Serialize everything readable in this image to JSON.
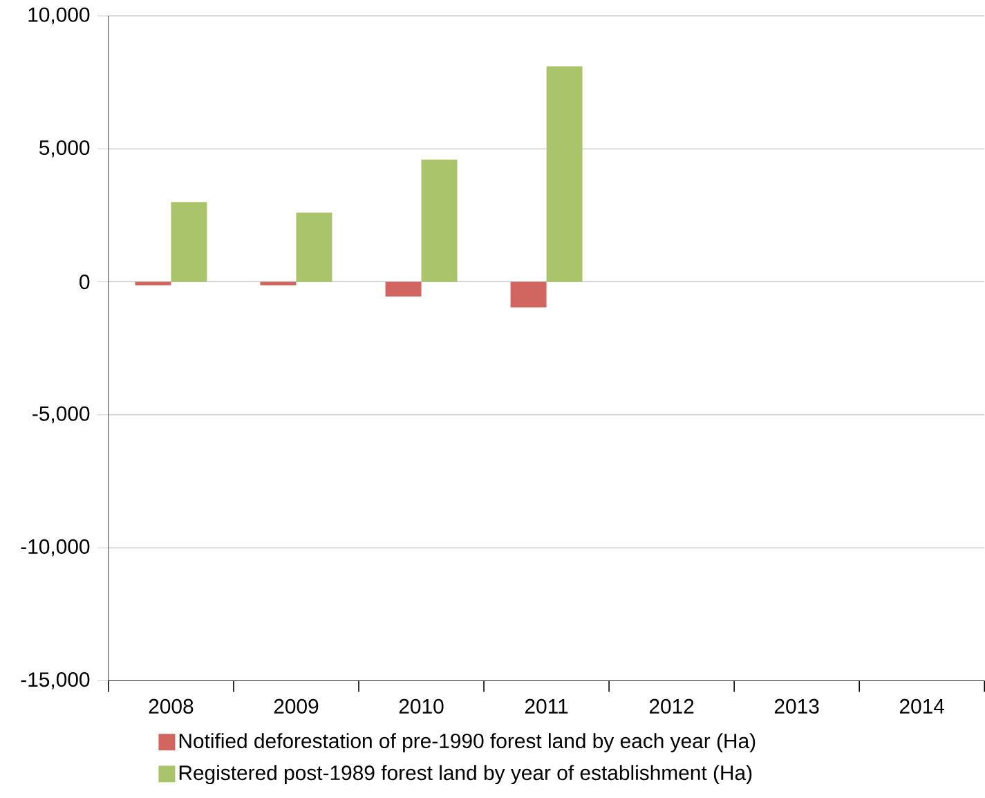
{
  "chart_data": {
    "type": "bar",
    "categories": [
      "2008",
      "2009",
      "2010",
      "2011",
      "2012",
      "2013",
      "2014"
    ],
    "series": [
      {
        "name": "Notified deforestation of pre-1990 forest land by each year (Ha)",
        "color": "#d0665f",
        "values": [
          -130,
          -130,
          -550,
          -960,
          null,
          null,
          null
        ]
      },
      {
        "name": "Registered post-1989 forest land by year of establishment (Ha)",
        "color": "#a9c46a",
        "values": [
          3000,
          2600,
          4600,
          8100,
          null,
          null,
          null
        ]
      }
    ],
    "ylim": [
      -15000,
      10000
    ],
    "yticks": [
      {
        "value": -15000,
        "label": "-15,000"
      },
      {
        "value": -10000,
        "label": "-10,000"
      },
      {
        "value": -5000,
        "label": "-5,000"
      },
      0,
      {
        "value": 5000,
        "label": "5,000"
      },
      {
        "value": 10000,
        "label": "10,000"
      }
    ],
    "grid": "y",
    "legend": "bottom"
  }
}
